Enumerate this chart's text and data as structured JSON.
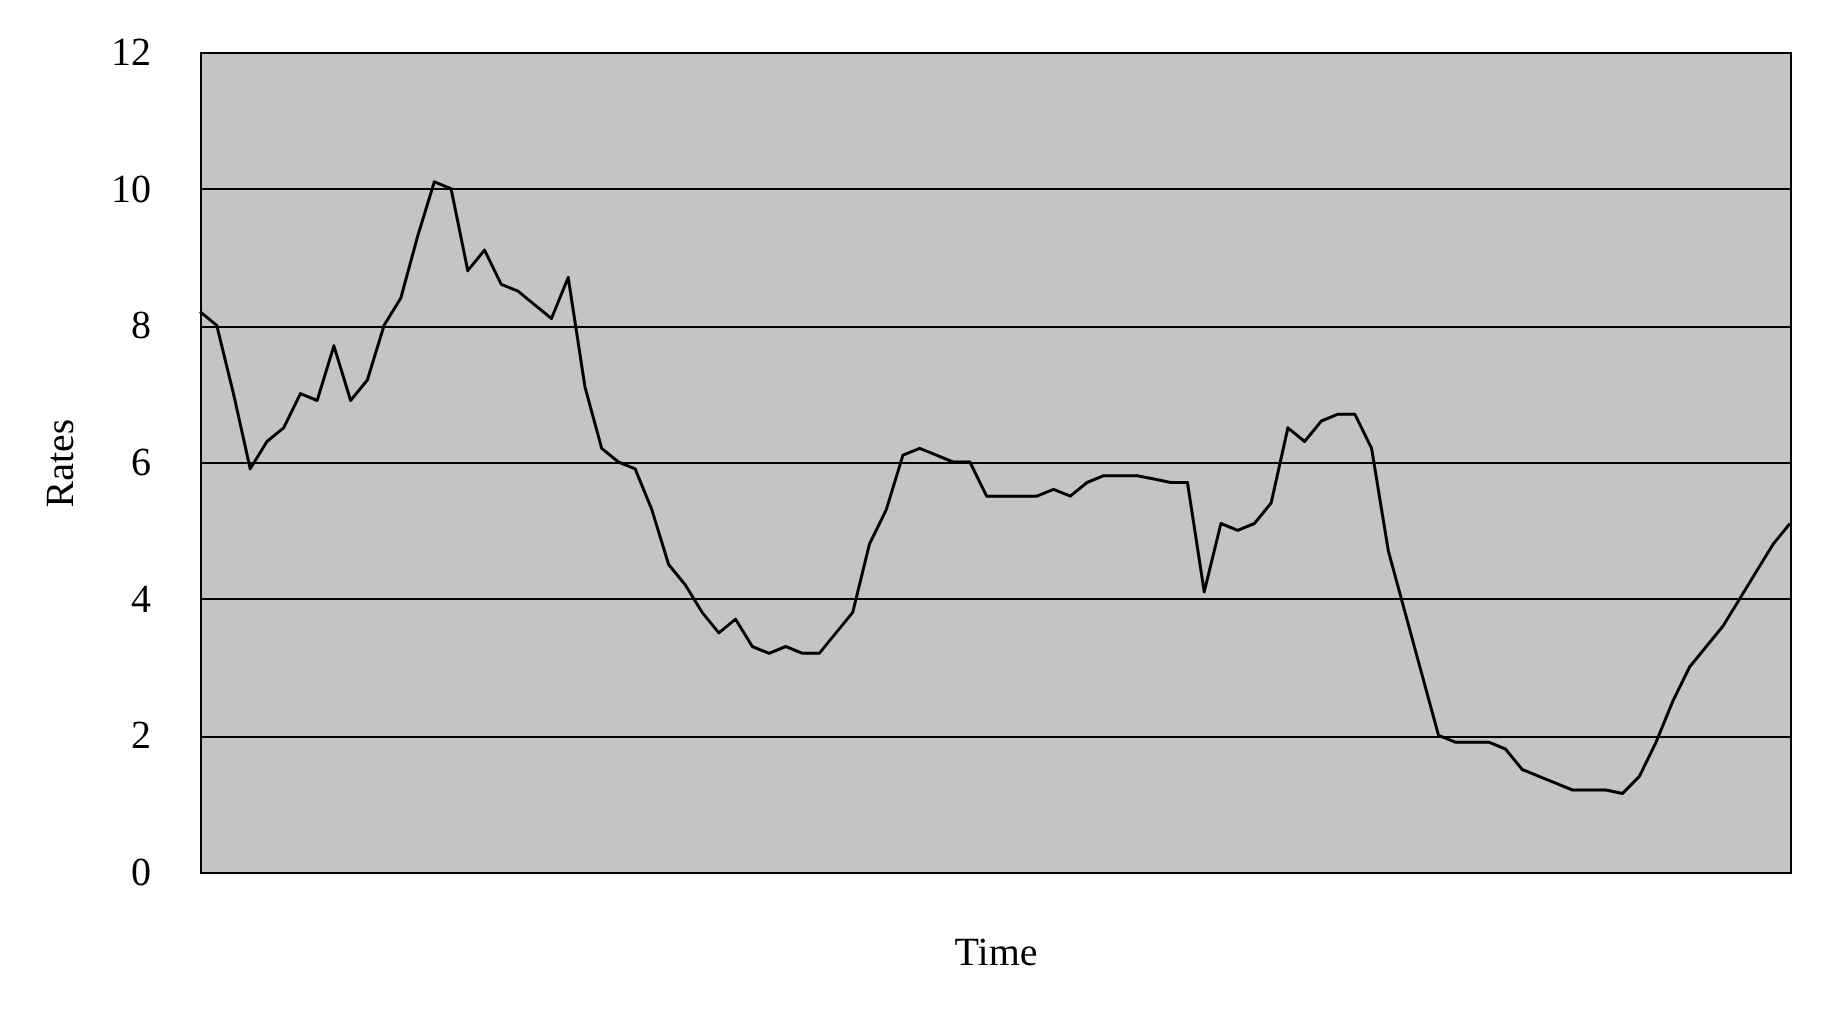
{
  "chart_data": {
    "type": "line",
    "xlabel": "Time",
    "ylabel": "Rates",
    "categories": [
      null,
      null,
      null,
      null,
      null,
      null,
      null,
      null,
      null,
      null,
      null,
      null,
      null,
      null,
      null,
      null,
      null,
      null,
      null,
      null,
      null,
      null,
      null,
      null,
      null,
      null,
      null,
      null,
      null,
      null,
      null,
      null,
      null,
      null,
      null,
      null,
      null,
      null,
      null,
      null,
      null,
      null,
      null,
      null,
      null,
      null,
      null,
      null,
      null,
      null,
      null,
      null,
      null,
      null,
      null,
      null,
      null,
      null,
      null,
      null,
      null,
      null,
      null,
      null,
      null,
      null,
      null,
      null,
      null,
      null,
      null,
      null,
      null,
      null,
      null,
      null,
      null,
      null,
      null,
      null,
      null,
      null,
      null,
      null,
      null,
      null,
      null,
      null,
      null,
      null,
      null,
      null,
      null,
      null,
      null,
      null
    ],
    "series": [
      {
        "color": "#000000",
        "values": [
          8.2,
          8.0,
          7.0,
          5.9,
          6.3,
          6.5,
          7.0,
          6.9,
          7.7,
          6.9,
          7.2,
          8.0,
          8.4,
          9.3,
          10.1,
          10.0,
          8.8,
          9.1,
          8.6,
          8.5,
          8.3,
          8.1,
          8.7,
          7.1,
          6.2,
          6.0,
          5.9,
          5.3,
          4.5,
          4.2,
          3.8,
          3.5,
          3.7,
          3.3,
          3.2,
          3.3,
          3.2,
          3.2,
          3.5,
          3.8,
          4.8,
          5.3,
          6.1,
          6.2,
          6.1,
          6.0,
          6.0,
          5.5,
          5.5,
          5.5,
          5.5,
          5.6,
          5.5,
          5.7,
          5.8,
          5.8,
          5.8,
          5.75,
          5.7,
          5.7,
          4.1,
          5.1,
          5.0,
          5.1,
          5.4,
          6.5,
          6.3,
          6.6,
          6.7,
          6.7,
          6.2,
          4.7,
          3.8,
          2.9,
          2.0,
          1.9,
          1.9,
          1.9,
          1.8,
          1.5,
          1.4,
          1.3,
          1.2,
          1.2,
          1.2,
          1.15,
          1.4,
          1.9,
          2.5,
          3.0,
          3.3,
          3.6,
          4.0,
          4.4,
          4.8,
          5.1
        ]
      }
    ],
    "ylim": [
      0,
      12
    ],
    "yticks": [
      0,
      2,
      4,
      6,
      8,
      10,
      12
    ],
    "grid": "y",
    "tick_labels": "y",
    "legend": false,
    "marker": "none",
    "line_style": "solid"
  }
}
